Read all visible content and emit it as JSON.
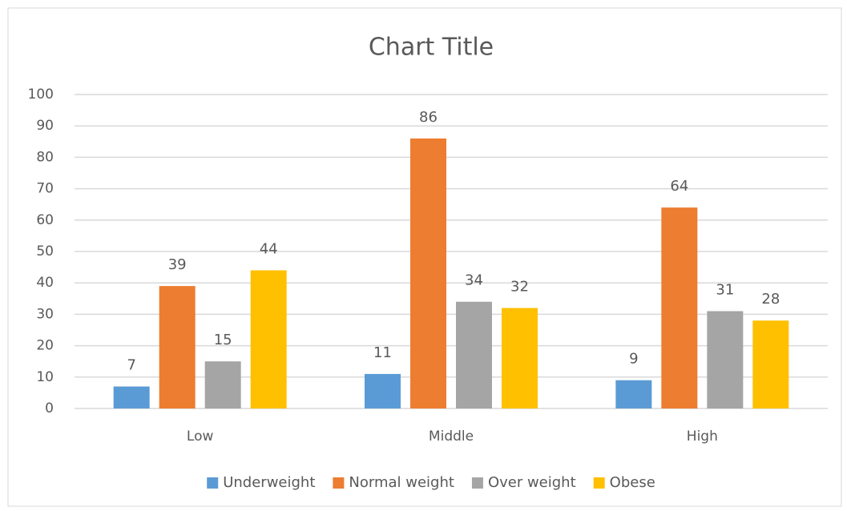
{
  "chart_data": {
    "type": "bar",
    "title": "Chart Title",
    "categories": [
      "Low",
      "Middle",
      "High"
    ],
    "series": [
      {
        "name": "Underweight",
        "color": "#5b9bd5",
        "values": [
          7,
          11,
          9
        ]
      },
      {
        "name": "Normal weight",
        "color": "#ed7d31",
        "values": [
          39,
          86,
          64
        ]
      },
      {
        "name": "Over weight",
        "color": "#a5a5a5",
        "values": [
          15,
          34,
          31
        ]
      },
      {
        "name": "Obese",
        "color": "#ffc000",
        "values": [
          44,
          32,
          28
        ]
      }
    ],
    "ylim": [
      0,
      100
    ],
    "yticks": [
      0,
      10,
      20,
      30,
      40,
      50,
      60,
      70,
      80,
      90,
      100
    ],
    "grid": true,
    "legend": "bottom"
  }
}
